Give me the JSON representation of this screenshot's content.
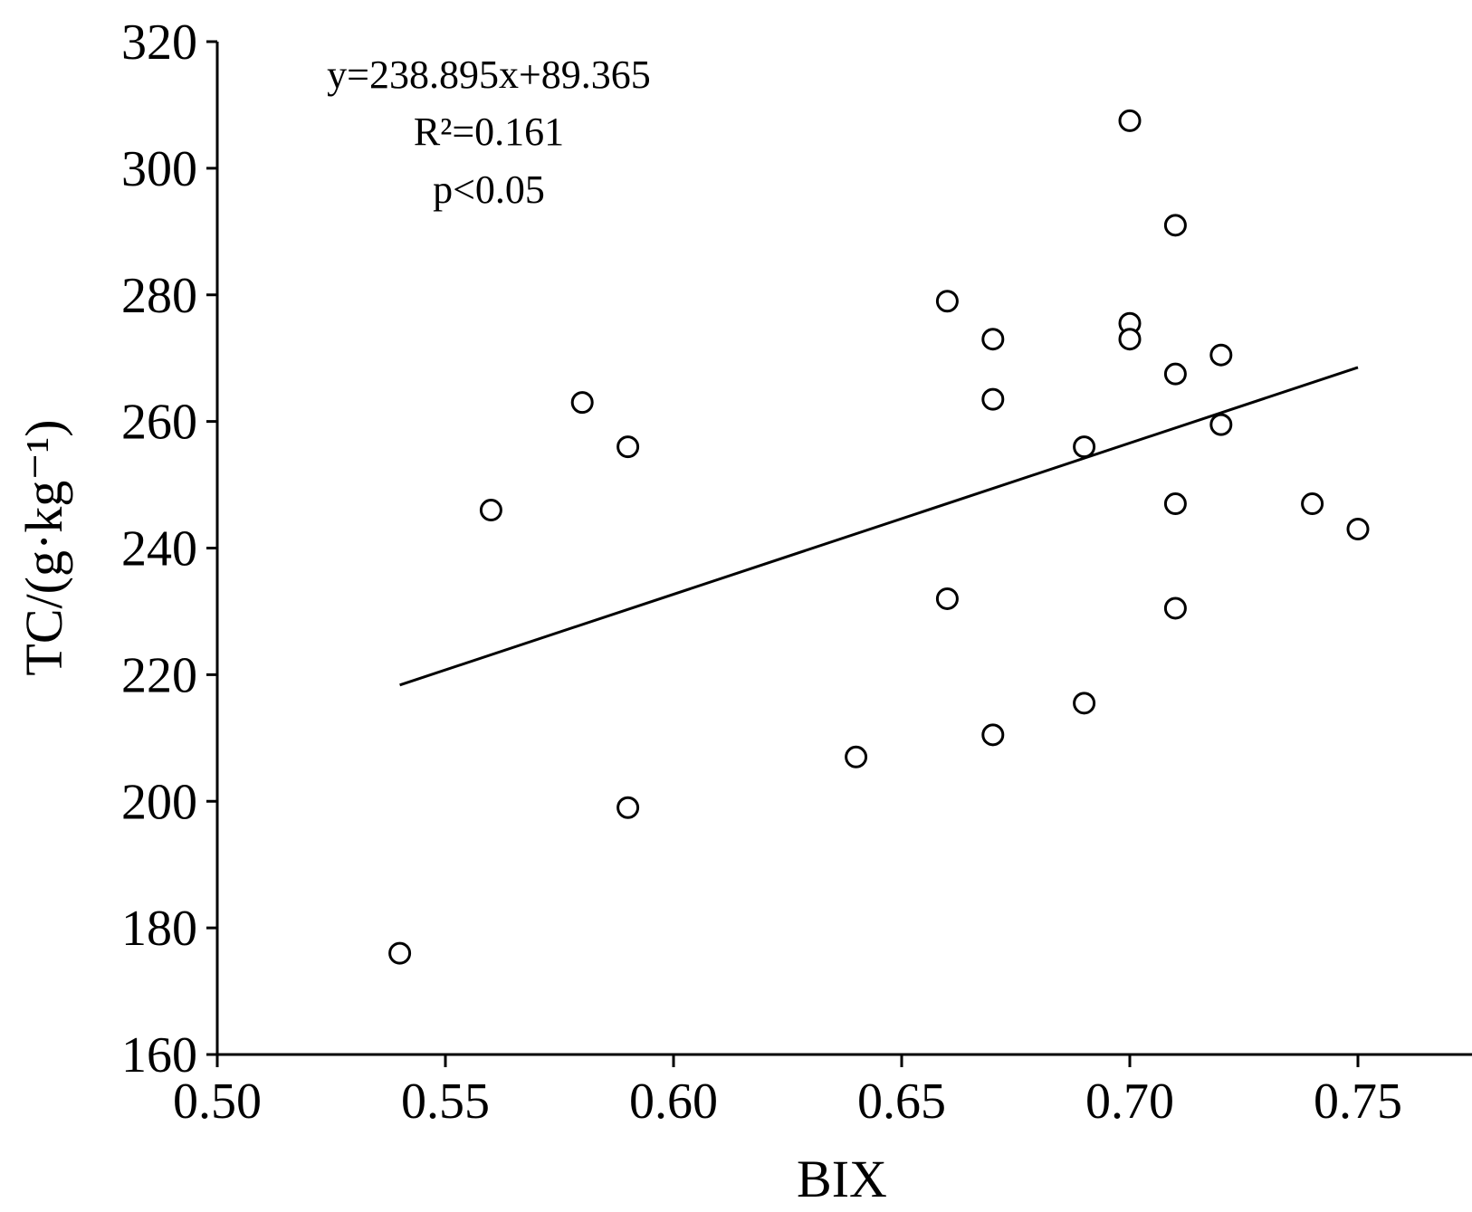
{
  "chart_data": {
    "type": "scatter",
    "xlabel": "BIX",
    "ylabel": "TC/(g·kg⁻¹)",
    "xlim": [
      0.5,
      0.775
    ],
    "ylim": [
      160,
      320
    ],
    "x_ticks": [
      0.5,
      0.55,
      0.6,
      0.65,
      0.7,
      0.75
    ],
    "x_tick_labels": [
      "0.50",
      "0.55",
      "0.60",
      "0.65",
      "0.70",
      "0.75"
    ],
    "y_ticks": [
      160,
      180,
      200,
      220,
      240,
      260,
      280,
      300,
      320
    ],
    "y_tick_labels": [
      "160",
      "180",
      "200",
      "220",
      "240",
      "260",
      "280",
      "300",
      "320"
    ],
    "grid": false,
    "annotations": {
      "equation": "y=238.895x+89.365",
      "r_squared": "R²=0.161",
      "p_value": "p<0.05"
    },
    "fit": {
      "slope": 238.895,
      "intercept": 89.365,
      "x_range": [
        0.54,
        0.75
      ]
    },
    "points": [
      {
        "x": 0.54,
        "y": 176
      },
      {
        "x": 0.56,
        "y": 246
      },
      {
        "x": 0.58,
        "y": 263
      },
      {
        "x": 0.59,
        "y": 256
      },
      {
        "x": 0.59,
        "y": 199
      },
      {
        "x": 0.64,
        "y": 207
      },
      {
        "x": 0.66,
        "y": 279
      },
      {
        "x": 0.66,
        "y": 232
      },
      {
        "x": 0.67,
        "y": 273
      },
      {
        "x": 0.67,
        "y": 263.5
      },
      {
        "x": 0.67,
        "y": 210.5
      },
      {
        "x": 0.69,
        "y": 256
      },
      {
        "x": 0.69,
        "y": 215.5
      },
      {
        "x": 0.7,
        "y": 307.5
      },
      {
        "x": 0.7,
        "y": 275.5
      },
      {
        "x": 0.7,
        "y": 273
      },
      {
        "x": 0.71,
        "y": 291
      },
      {
        "x": 0.71,
        "y": 267.5
      },
      {
        "x": 0.71,
        "y": 247
      },
      {
        "x": 0.71,
        "y": 230.5
      },
      {
        "x": 0.72,
        "y": 270.5
      },
      {
        "x": 0.72,
        "y": 259.5
      },
      {
        "x": 0.74,
        "y": 247
      },
      {
        "x": 0.75,
        "y": 243
      }
    ]
  }
}
